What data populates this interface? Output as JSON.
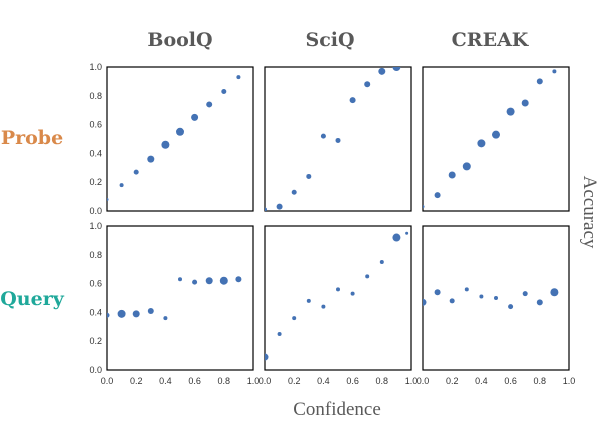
{
  "figure": {
    "columns": [
      "BoolQ",
      "SciQ",
      "CREAK"
    ],
    "rows": [
      {
        "label": "Probe",
        "color": "#d9894a"
      },
      {
        "label": "Query",
        "color": "#1fa89a"
      }
    ],
    "xlabel": "Confidence",
    "ylabel": "Accuracy",
    "point_color": "#4472b4"
  },
  "chart_data": [
    {
      "type": "scatter",
      "dataset": "BoolQ",
      "method": "Probe",
      "xlim": [
        0,
        1
      ],
      "ylim": [
        0,
        1
      ],
      "grid": false,
      "x_ticks": [
        "0.0",
        "0.2",
        "0.4",
        "0.6",
        "0.8",
        "1.0"
      ],
      "y_ticks": [
        "0.0",
        "0.2",
        "0.4",
        "0.6",
        "0.8",
        "1.0"
      ],
      "points": [
        {
          "x": 0.0,
          "y": 0.08,
          "size": 1.5
        },
        {
          "x": 0.1,
          "y": 0.18,
          "size": 2
        },
        {
          "x": 0.2,
          "y": 0.27,
          "size": 2.5
        },
        {
          "x": 0.3,
          "y": 0.36,
          "size": 3.5
        },
        {
          "x": 0.4,
          "y": 0.46,
          "size": 4
        },
        {
          "x": 0.5,
          "y": 0.55,
          "size": 4
        },
        {
          "x": 0.6,
          "y": 0.65,
          "size": 3.5
        },
        {
          "x": 0.7,
          "y": 0.74,
          "size": 3
        },
        {
          "x": 0.8,
          "y": 0.83,
          "size": 2.5
        },
        {
          "x": 0.9,
          "y": 0.93,
          "size": 2
        }
      ]
    },
    {
      "type": "scatter",
      "dataset": "SciQ",
      "method": "Probe",
      "xlim": [
        0,
        1
      ],
      "ylim": [
        0,
        1
      ],
      "grid": false,
      "x_ticks": [
        "0.0",
        "0.2",
        "0.4",
        "0.6",
        "0.8",
        "1.0"
      ],
      "y_ticks": [
        "0.0",
        "0.2",
        "0.4",
        "0.6",
        "0.8",
        "1.0"
      ],
      "points": [
        {
          "x": 0.0,
          "y": 0.01,
          "size": 2
        },
        {
          "x": 0.1,
          "y": 0.03,
          "size": 3
        },
        {
          "x": 0.2,
          "y": 0.13,
          "size": 2.5
        },
        {
          "x": 0.3,
          "y": 0.24,
          "size": 2.5
        },
        {
          "x": 0.4,
          "y": 0.52,
          "size": 2.5
        },
        {
          "x": 0.5,
          "y": 0.49,
          "size": 2.5
        },
        {
          "x": 0.6,
          "y": 0.77,
          "size": 3
        },
        {
          "x": 0.7,
          "y": 0.88,
          "size": 3
        },
        {
          "x": 0.8,
          "y": 0.97,
          "size": 3.5
        },
        {
          "x": 0.9,
          "y": 1.0,
          "size": 4
        }
      ]
    },
    {
      "type": "scatter",
      "dataset": "CREAK",
      "method": "Probe",
      "xlim": [
        0,
        1
      ],
      "ylim": [
        0,
        1
      ],
      "grid": false,
      "x_ticks": [
        "0.0",
        "0.2",
        "0.4",
        "0.6",
        "0.8",
        "1.0"
      ],
      "y_ticks": [
        "0.0",
        "0.2",
        "0.4",
        "0.6",
        "0.8",
        "1.0"
      ],
      "points": [
        {
          "x": 0.0,
          "y": 0.03,
          "size": 1.5
        },
        {
          "x": 0.1,
          "y": 0.11,
          "size": 3
        },
        {
          "x": 0.2,
          "y": 0.25,
          "size": 3.5
        },
        {
          "x": 0.3,
          "y": 0.31,
          "size": 4
        },
        {
          "x": 0.4,
          "y": 0.47,
          "size": 4
        },
        {
          "x": 0.5,
          "y": 0.53,
          "size": 4
        },
        {
          "x": 0.6,
          "y": 0.69,
          "size": 4
        },
        {
          "x": 0.7,
          "y": 0.75,
          "size": 3.5
        },
        {
          "x": 0.8,
          "y": 0.9,
          "size": 3
        },
        {
          "x": 0.9,
          "y": 0.97,
          "size": 2
        }
      ]
    },
    {
      "type": "scatter",
      "dataset": "BoolQ",
      "method": "Query",
      "xlim": [
        0,
        1
      ],
      "ylim": [
        0,
        1
      ],
      "grid": false,
      "x_ticks": [
        "0.0",
        "0.2",
        "0.4",
        "0.6",
        "0.8",
        "1.0"
      ],
      "y_ticks": [
        "0.0",
        "0.2",
        "0.4",
        "0.6",
        "0.8",
        "1.0"
      ],
      "points": [
        {
          "x": 0.0,
          "y": 0.38,
          "size": 2.5
        },
        {
          "x": 0.1,
          "y": 0.39,
          "size": 4
        },
        {
          "x": 0.2,
          "y": 0.39,
          "size": 3.5
        },
        {
          "x": 0.3,
          "y": 0.41,
          "size": 3
        },
        {
          "x": 0.4,
          "y": 0.36,
          "size": 2
        },
        {
          "x": 0.5,
          "y": 0.63,
          "size": 2
        },
        {
          "x": 0.6,
          "y": 0.61,
          "size": 2.5
        },
        {
          "x": 0.7,
          "y": 0.62,
          "size": 3.5
        },
        {
          "x": 0.8,
          "y": 0.62,
          "size": 4
        },
        {
          "x": 0.9,
          "y": 0.63,
          "size": 3
        }
      ]
    },
    {
      "type": "scatter",
      "dataset": "SciQ",
      "method": "Query",
      "xlim": [
        0,
        1
      ],
      "ylim": [
        0,
        1
      ],
      "grid": false,
      "x_ticks": [
        "0.0",
        "0.2",
        "0.4",
        "0.6",
        "0.8",
        "1.0"
      ],
      "y_ticks": [
        "0.0",
        "0.2",
        "0.4",
        "0.6",
        "0.8",
        "1.0"
      ],
      "points": [
        {
          "x": 0.0,
          "y": 0.09,
          "size": 3.5
        },
        {
          "x": 0.1,
          "y": 0.25,
          "size": 2
        },
        {
          "x": 0.2,
          "y": 0.36,
          "size": 2
        },
        {
          "x": 0.3,
          "y": 0.48,
          "size": 2
        },
        {
          "x": 0.4,
          "y": 0.44,
          "size": 2
        },
        {
          "x": 0.5,
          "y": 0.56,
          "size": 2
        },
        {
          "x": 0.6,
          "y": 0.53,
          "size": 2
        },
        {
          "x": 0.7,
          "y": 0.65,
          "size": 2
        },
        {
          "x": 0.8,
          "y": 0.75,
          "size": 2
        },
        {
          "x": 0.9,
          "y": 0.92,
          "size": 4
        },
        {
          "x": 0.97,
          "y": 0.95,
          "size": 1.5
        }
      ]
    },
    {
      "type": "scatter",
      "dataset": "CREAK",
      "method": "Query",
      "xlim": [
        0,
        1
      ],
      "ylim": [
        0,
        1
      ],
      "grid": false,
      "x_ticks": [
        "0.0",
        "0.2",
        "0.4",
        "0.6",
        "0.8",
        "1.0"
      ],
      "y_ticks": [
        "0.0",
        "0.2",
        "0.4",
        "0.6",
        "0.8",
        "1.0"
      ],
      "points": [
        {
          "x": 0.0,
          "y": 0.47,
          "size": 3.5
        },
        {
          "x": 0.1,
          "y": 0.54,
          "size": 3
        },
        {
          "x": 0.2,
          "y": 0.48,
          "size": 2.5
        },
        {
          "x": 0.3,
          "y": 0.56,
          "size": 2
        },
        {
          "x": 0.4,
          "y": 0.51,
          "size": 2
        },
        {
          "x": 0.5,
          "y": 0.5,
          "size": 2
        },
        {
          "x": 0.6,
          "y": 0.44,
          "size": 2.5
        },
        {
          "x": 0.7,
          "y": 0.53,
          "size": 2.5
        },
        {
          "x": 0.8,
          "y": 0.47,
          "size": 3
        },
        {
          "x": 0.9,
          "y": 0.54,
          "size": 4
        }
      ]
    }
  ]
}
